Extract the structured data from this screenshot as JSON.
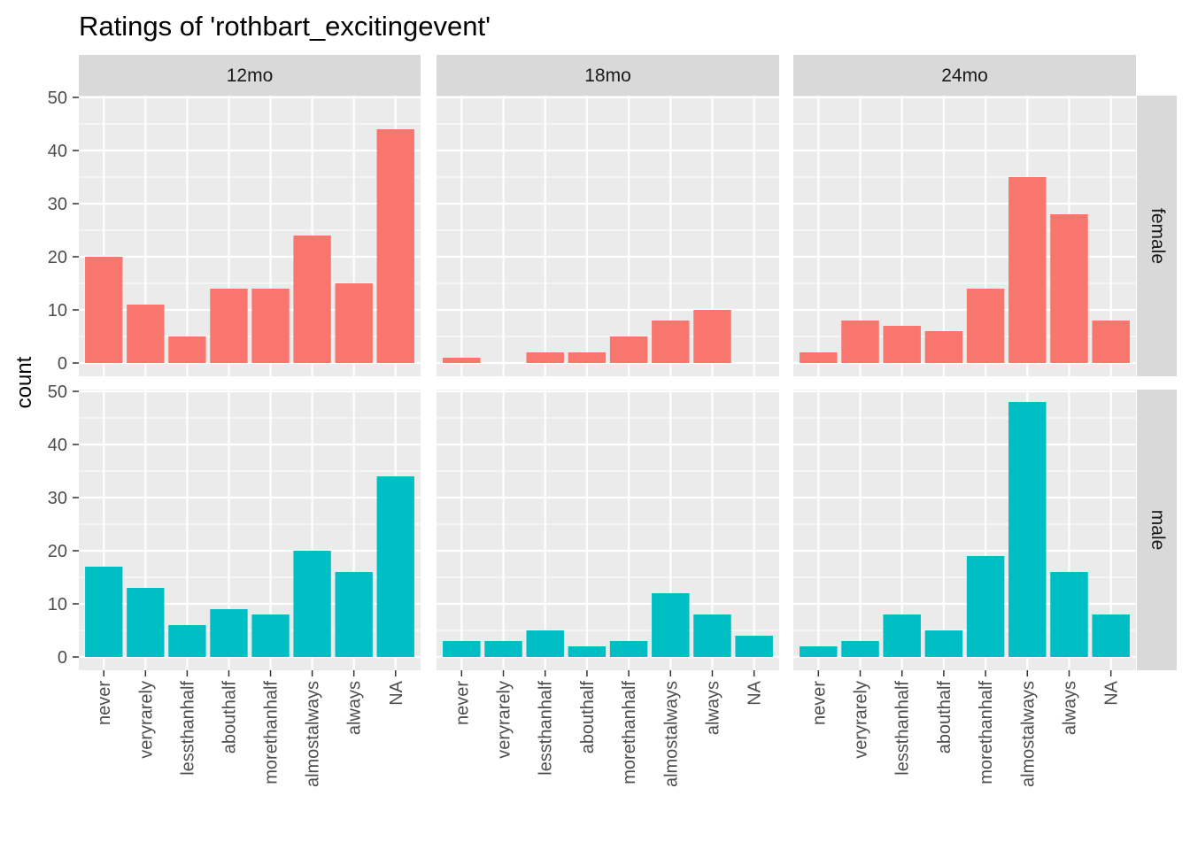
{
  "chart_data": {
    "type": "bar",
    "title": "Ratings of 'rothbart_excitingevent'",
    "xlabel": "",
    "ylabel": "count",
    "ylim": [
      0,
      50
    ],
    "yticks": [
      0,
      10,
      20,
      30,
      40,
      50
    ],
    "categories": [
      "never",
      "veryrarely",
      "lessthanhalf",
      "abouthalf",
      "morethanhalf",
      "almostalways",
      "always",
      "NA"
    ],
    "columns": [
      "12mo",
      "18mo",
      "24mo"
    ],
    "rows": [
      "female",
      "male"
    ],
    "colors": {
      "female": "#F8766D",
      "male": "#00BFC4",
      "panel": "#EBEBEB",
      "strip": "#D9D9D9",
      "grid": "#FFFFFF"
    },
    "grid": true,
    "legend": "none",
    "panels": [
      {
        "column": "12mo",
        "row": "female",
        "values": [
          20,
          11,
          5,
          14,
          14,
          24,
          15,
          44
        ]
      },
      {
        "column": "18mo",
        "row": "female",
        "values": [
          1,
          0,
          2,
          2,
          5,
          8,
          10,
          0
        ]
      },
      {
        "column": "24mo",
        "row": "female",
        "values": [
          2,
          8,
          7,
          6,
          14,
          35,
          28,
          8
        ]
      },
      {
        "column": "12mo",
        "row": "male",
        "values": [
          17,
          13,
          6,
          9,
          8,
          20,
          16,
          34
        ]
      },
      {
        "column": "18mo",
        "row": "male",
        "values": [
          3,
          3,
          5,
          2,
          3,
          12,
          8,
          4
        ]
      },
      {
        "column": "24mo",
        "row": "male",
        "values": [
          2,
          3,
          8,
          5,
          19,
          48,
          16,
          8
        ]
      }
    ]
  }
}
